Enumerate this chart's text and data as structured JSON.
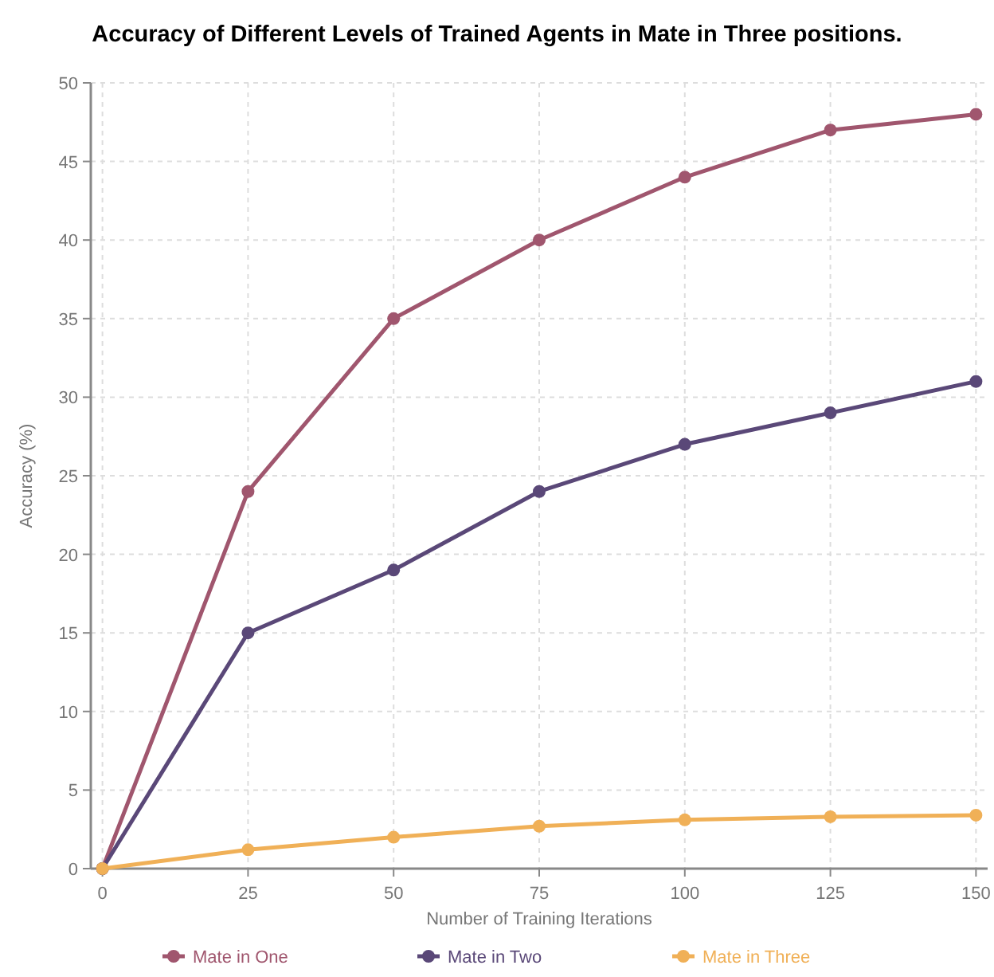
{
  "chart_data": {
    "type": "line",
    "title": "Accuracy of Different Levels of Trained Agents in Mate in Three positions.",
    "xlabel": "Number of Training Iterations",
    "ylabel": "Accuracy (%)",
    "x": [
      0,
      25,
      50,
      75,
      100,
      125,
      150
    ],
    "series": [
      {
        "name": "Mate in One",
        "color": "#a0566e",
        "values": [
          0,
          24,
          35,
          40,
          44,
          47,
          48
        ]
      },
      {
        "name": "Mate in Two",
        "color": "#5a4878",
        "values": [
          0,
          15,
          19,
          24,
          27,
          29,
          31
        ]
      },
      {
        "name": "Mate in Three",
        "color": "#f0b057",
        "values": [
          0,
          1.2,
          2,
          2.7,
          3.1,
          3.3,
          3.4
        ]
      }
    ],
    "xlim": [
      -2,
      152
    ],
    "xticks": [
      0,
      25,
      50,
      75,
      100,
      125,
      150
    ],
    "ylim": [
      0,
      50
    ],
    "yticks": [
      0,
      5,
      10,
      15,
      20,
      25,
      30,
      35,
      40,
      45,
      50
    ],
    "grid": true,
    "legend": "bottom",
    "marker": "circle",
    "line_style": "solid"
  }
}
